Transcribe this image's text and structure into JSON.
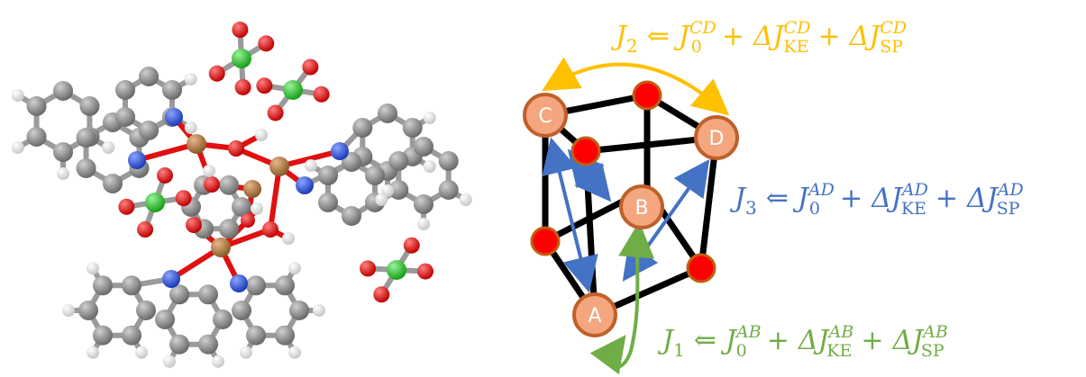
{
  "molecule": {
    "colors": {
      "carbon": "#7a7a7a",
      "hydrogen": "#f2f2f2",
      "nitrogen": "#2a4fd6",
      "oxygen": "#e01010",
      "copper": "#b07a3a",
      "chlorine": "#22c020",
      "bond": "#9a9a9a"
    }
  },
  "cube": {
    "nodes": [
      {
        "label": "A"
      },
      {
        "label": "B"
      },
      {
        "label": "C"
      },
      {
        "label": "D"
      }
    ],
    "colors": {
      "node_fill": "#f4a67f",
      "node_stroke": "#c0602a",
      "bridge_fill": "#ff0000",
      "bridge_stroke": "#c06010",
      "edge": "#000000"
    }
  },
  "couplings": [
    {
      "key": "J2",
      "color": "#ffc000",
      "J": "J",
      "J_sub": "2",
      "arrow": "⇐",
      "J0": "J",
      "J0_sub": "0",
      "J0_sup": "CD",
      "d1": "ΔJ",
      "d1_sub": "KE",
      "d1_sup": "CD",
      "d2": "ΔJ",
      "d2_sub": "SP",
      "d2_sup": "CD",
      "plus": "+"
    },
    {
      "key": "J3",
      "color": "#4472c4",
      "J": "J",
      "J_sub": "3",
      "arrow": "⇐",
      "J0": "J",
      "J0_sub": "0",
      "J0_sup": "AD",
      "d1": "ΔJ",
      "d1_sub": "KE",
      "d1_sup": "AD",
      "d2": "ΔJ",
      "d2_sub": "SP",
      "d2_sup": "AD",
      "plus": "+"
    },
    {
      "key": "J1",
      "color": "#70ad47",
      "J": "J",
      "J_sub": "1",
      "arrow": "⇐",
      "J0": "J",
      "J0_sub": "0",
      "J0_sup": "AB",
      "d1": "ΔJ",
      "d1_sub": "KE",
      "d1_sup": "AB",
      "d2": "ΔJ",
      "d2_sub": "SP",
      "d2_sup": "AB",
      "plus": "+"
    }
  ]
}
